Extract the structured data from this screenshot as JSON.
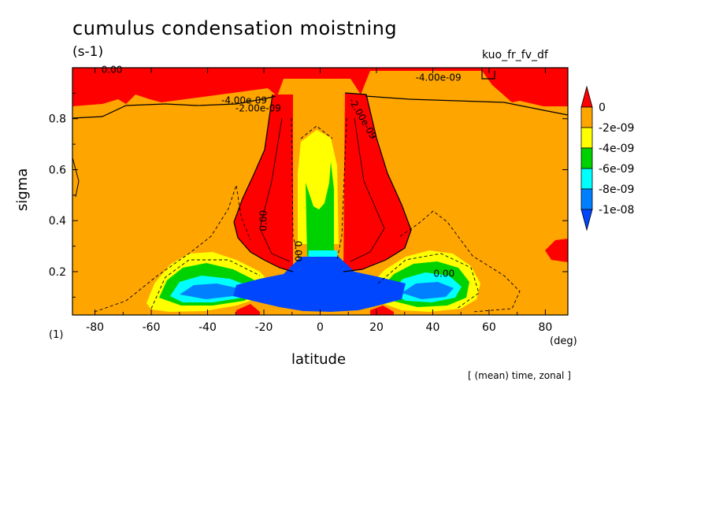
{
  "chart_data": {
    "type": "contour",
    "title": "cumulus condensation moistning",
    "units": "(s-1)",
    "variable": "kuo_fr_fv_df",
    "xlabel": "latitude",
    "xunits": "(deg)",
    "ylabel": "sigma",
    "zunits_label": "(1)",
    "note": "[ (mean) time, zonal ]",
    "xlim": [
      -88,
      88
    ],
    "ylim": [
      1.0,
      0.03
    ],
    "xticks": [
      "-80",
      "-60",
      "-40",
      "-20",
      "0",
      "20",
      "40",
      "60",
      "80"
    ],
    "xtick_values": [
      -80,
      -60,
      -40,
      -20,
      0,
      20,
      40,
      60,
      80
    ],
    "yticks": [
      "0.2",
      "0.4",
      "0.6",
      "0.8"
    ],
    "ytick_values": [
      0.2,
      0.4,
      0.6,
      0.8
    ],
    "contour_labels": [
      "0.00",
      "0.00",
      "0.00",
      "0.00",
      "-4.00e-09",
      "-2.00e-09",
      "-4.00e-09",
      "-2.00e-09"
    ],
    "legend": {
      "levels": [
        "0",
        "-2e-09",
        "-4e-09",
        "-6e-09",
        "-8e-09",
        "-1e-08"
      ],
      "colors": [
        "#ff0000",
        "#ffa500",
        "#ffff00",
        "#00d200",
        "#00ffff",
        "#0080ff",
        "#0046ff"
      ]
    }
  }
}
